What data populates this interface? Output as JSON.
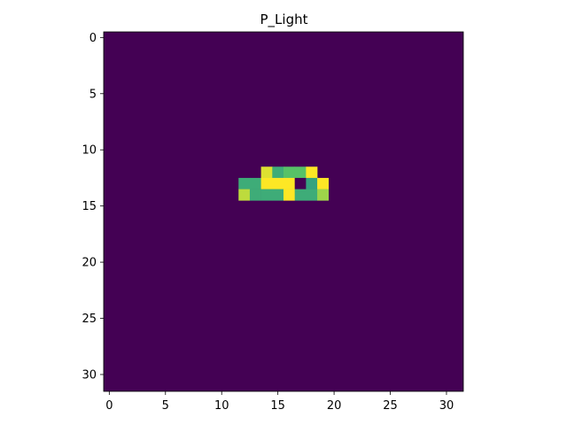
{
  "chart_data": {
    "type": "heatmap",
    "title": "P_Light",
    "xlabel": "",
    "ylabel": "",
    "xlim": [
      -0.5,
      31.5
    ],
    "ylim": [
      31.5,
      -0.5
    ],
    "x_ticks": [
      0,
      5,
      10,
      15,
      20,
      25,
      30
    ],
    "y_ticks": [
      0,
      5,
      10,
      15,
      20,
      25,
      30
    ],
    "grid_size": [
      32,
      32
    ],
    "background_value": 0,
    "value_range": [
      0,
      1
    ],
    "colormap": "viridis",
    "colormap_stops": [
      "#440154",
      "#3b528b",
      "#21918c",
      "#5ec962",
      "#fde725"
    ],
    "cells": [
      {
        "row": 12,
        "col": 14,
        "value": 0.95
      },
      {
        "row": 12,
        "col": 15,
        "value": 0.62
      },
      {
        "row": 12,
        "col": 16,
        "value": 0.72
      },
      {
        "row": 12,
        "col": 17,
        "value": 0.72
      },
      {
        "row": 12,
        "col": 18,
        "value": 1.0
      },
      {
        "row": 13,
        "col": 12,
        "value": 0.62
      },
      {
        "row": 13,
        "col": 13,
        "value": 0.62
      },
      {
        "row": 13,
        "col": 14,
        "value": 1.0
      },
      {
        "row": 13,
        "col": 15,
        "value": 1.0
      },
      {
        "row": 13,
        "col": 16,
        "value": 1.0
      },
      {
        "row": 13,
        "col": 17,
        "value": 0.0
      },
      {
        "row": 13,
        "col": 18,
        "value": 0.58
      },
      {
        "row": 13,
        "col": 19,
        "value": 1.0
      },
      {
        "row": 14,
        "col": 12,
        "value": 0.9
      },
      {
        "row": 14,
        "col": 13,
        "value": 0.62
      },
      {
        "row": 14,
        "col": 14,
        "value": 0.62
      },
      {
        "row": 14,
        "col": 15,
        "value": 0.62
      },
      {
        "row": 14,
        "col": 16,
        "value": 1.0
      },
      {
        "row": 14,
        "col": 17,
        "value": 0.62
      },
      {
        "row": 14,
        "col": 18,
        "value": 0.62
      },
      {
        "row": 14,
        "col": 19,
        "value": 0.85
      }
    ]
  }
}
